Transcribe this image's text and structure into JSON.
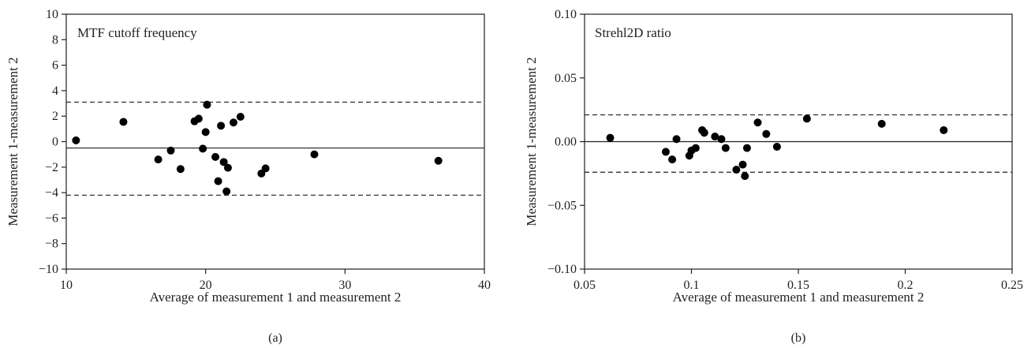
{
  "chart_data": [
    {
      "type": "scatter",
      "panel_label": "(a)",
      "title": "MTF cutoff frequency",
      "xlabel": "Average of measurement 1 and measurement 2",
      "ylabel": "Measurement 1-measurement 2",
      "xlim": [
        10,
        40
      ],
      "ylim": [
        -10,
        10
      ],
      "xticks": [
        10,
        20,
        30,
        40
      ],
      "yticks": [
        10,
        8,
        6,
        4,
        2,
        0,
        -2,
        -4,
        -6,
        -8,
        -10
      ],
      "x_tick_labels": [
        "10",
        "20",
        "30",
        "40"
      ],
      "y_tick_labels": [
        "10",
        "8",
        "6",
        "4",
        "2",
        "0",
        "−2",
        "−4",
        "−6",
        "−8",
        "−10"
      ],
      "grid": false,
      "mean_line": -0.5,
      "limits_of_agreement": [
        3.1,
        -4.2
      ],
      "points": [
        {
          "x": 10.7,
          "y": 0.1
        },
        {
          "x": 14.1,
          "y": 1.55
        },
        {
          "x": 16.6,
          "y": -1.4
        },
        {
          "x": 17.5,
          "y": -0.7
        },
        {
          "x": 18.2,
          "y": -2.15
        },
        {
          "x": 19.2,
          "y": 1.6
        },
        {
          "x": 19.5,
          "y": 1.8
        },
        {
          "x": 19.8,
          "y": -0.55
        },
        {
          "x": 20.0,
          "y": 0.75
        },
        {
          "x": 20.1,
          "y": 2.9
        },
        {
          "x": 20.7,
          "y": -1.2
        },
        {
          "x": 20.9,
          "y": -3.1
        },
        {
          "x": 21.1,
          "y": 1.25
        },
        {
          "x": 21.3,
          "y": -1.6
        },
        {
          "x": 21.5,
          "y": -3.9
        },
        {
          "x": 21.6,
          "y": -2.05
        },
        {
          "x": 22.0,
          "y": 1.5
        },
        {
          "x": 22.5,
          "y": 1.95
        },
        {
          "x": 24.0,
          "y": -2.5
        },
        {
          "x": 24.3,
          "y": -2.1
        },
        {
          "x": 27.8,
          "y": -1.0
        },
        {
          "x": 36.7,
          "y": -1.5
        }
      ]
    },
    {
      "type": "scatter",
      "panel_label": "(b)",
      "title": "Strehl2D ratio",
      "xlabel": "Average of measurement 1 and measurement 2",
      "ylabel": "Measurement 1-measurement 2",
      "xlim": [
        0.05,
        0.25
      ],
      "ylim": [
        -0.1,
        0.1
      ],
      "xticks": [
        0.05,
        0.1,
        0.15,
        0.2,
        0.25
      ],
      "yticks": [
        0.1,
        0.05,
        0.0,
        -0.05,
        -0.1
      ],
      "x_tick_labels": [
        "0.05",
        "0.1",
        "0.15",
        "0.2",
        "0.25"
      ],
      "y_tick_labels": [
        "0.10",
        "0.05",
        "0.00",
        "−0.05",
        "−0.10"
      ],
      "grid": false,
      "mean_line": 0.0,
      "limits_of_agreement": [
        0.021,
        -0.024
      ],
      "points": [
        {
          "x": 0.062,
          "y": 0.003
        },
        {
          "x": 0.088,
          "y": -0.008
        },
        {
          "x": 0.091,
          "y": -0.014
        },
        {
          "x": 0.093,
          "y": 0.002
        },
        {
          "x": 0.099,
          "y": -0.011
        },
        {
          "x": 0.1,
          "y": -0.007
        },
        {
          "x": 0.102,
          "y": -0.005
        },
        {
          "x": 0.105,
          "y": 0.009
        },
        {
          "x": 0.106,
          "y": 0.007
        },
        {
          "x": 0.111,
          "y": 0.004
        },
        {
          "x": 0.114,
          "y": 0.002
        },
        {
          "x": 0.116,
          "y": -0.005
        },
        {
          "x": 0.121,
          "y": -0.022
        },
        {
          "x": 0.124,
          "y": -0.018
        },
        {
          "x": 0.125,
          "y": -0.027
        },
        {
          "x": 0.126,
          "y": -0.005
        },
        {
          "x": 0.131,
          "y": 0.015
        },
        {
          "x": 0.135,
          "y": 0.006
        },
        {
          "x": 0.14,
          "y": -0.004
        },
        {
          "x": 0.154,
          "y": 0.018
        },
        {
          "x": 0.189,
          "y": 0.014
        },
        {
          "x": 0.218,
          "y": 0.009
        }
      ]
    }
  ]
}
